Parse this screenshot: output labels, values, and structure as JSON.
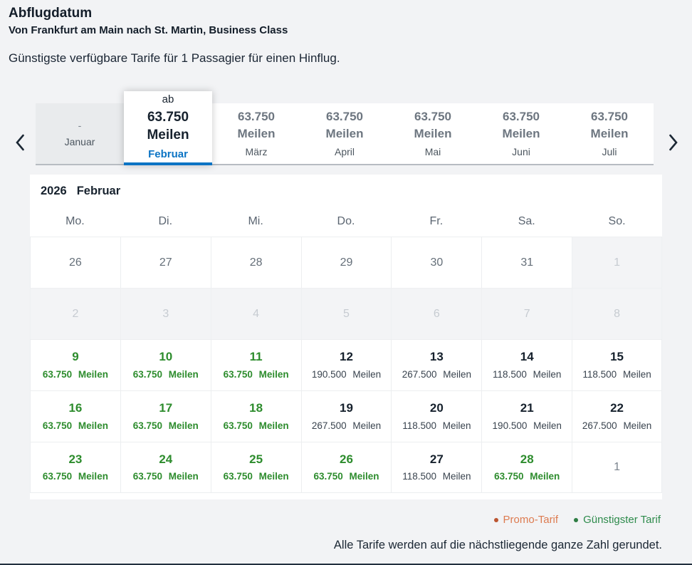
{
  "header": {
    "title": "Abflugdatum",
    "subtitle": "Von Frankfurt am Main nach St. Martin, Business Class",
    "tagline": "Günstigste verfügbare Tarife für 1 Passagier für einen Hinflug."
  },
  "carousel": {
    "tabs": [
      {
        "month": "Januar",
        "top": "-",
        "state": "disabled"
      },
      {
        "month": "Februar",
        "prefix": "ab",
        "miles": "63.750",
        "unit": "Meilen",
        "state": "selected"
      },
      {
        "month": "März",
        "miles": "63.750",
        "unit": "Meilen",
        "state": "normal"
      },
      {
        "month": "April",
        "miles": "63.750",
        "unit": "Meilen",
        "state": "normal"
      },
      {
        "month": "Mai",
        "miles": "63.750",
        "unit": "Meilen",
        "state": "normal"
      },
      {
        "month": "Juni",
        "miles": "63.750",
        "unit": "Meilen",
        "state": "normal"
      },
      {
        "month": "Juli",
        "miles": "63.750",
        "unit": "Meilen",
        "state": "normal"
      }
    ]
  },
  "calendar": {
    "year": "2026",
    "month": "Februar",
    "miles_unit": "Meilen",
    "weekdays": [
      "Mo.",
      "Di.",
      "Mi.",
      "Do.",
      "Fr.",
      "Sa.",
      "So."
    ],
    "cells": [
      {
        "day": "26",
        "type": "outside"
      },
      {
        "day": "27",
        "type": "outside"
      },
      {
        "day": "28",
        "type": "outside"
      },
      {
        "day": "29",
        "type": "outside"
      },
      {
        "day": "30",
        "type": "outside"
      },
      {
        "day": "31",
        "type": "outside"
      },
      {
        "day": "1",
        "type": "disabled"
      },
      {
        "day": "2",
        "type": "disabled"
      },
      {
        "day": "3",
        "type": "disabled"
      },
      {
        "day": "4",
        "type": "disabled"
      },
      {
        "day": "5",
        "type": "disabled"
      },
      {
        "day": "6",
        "type": "disabled"
      },
      {
        "day": "7",
        "type": "disabled"
      },
      {
        "day": "8",
        "type": "disabled"
      },
      {
        "day": "9",
        "type": "best",
        "miles": "63.750"
      },
      {
        "day": "10",
        "type": "best",
        "miles": "63.750"
      },
      {
        "day": "11",
        "type": "best",
        "miles": "63.750"
      },
      {
        "day": "12",
        "type": "fare",
        "miles": "190.500"
      },
      {
        "day": "13",
        "type": "fare",
        "miles": "267.500"
      },
      {
        "day": "14",
        "type": "fare",
        "miles": "118.500"
      },
      {
        "day": "15",
        "type": "fare",
        "miles": "118.500"
      },
      {
        "day": "16",
        "type": "best",
        "miles": "63.750"
      },
      {
        "day": "17",
        "type": "best",
        "miles": "63.750"
      },
      {
        "day": "18",
        "type": "best",
        "miles": "63.750"
      },
      {
        "day": "19",
        "type": "fare",
        "miles": "267.500"
      },
      {
        "day": "20",
        "type": "fare",
        "miles": "118.500"
      },
      {
        "day": "21",
        "type": "fare",
        "miles": "190.500"
      },
      {
        "day": "22",
        "type": "fare",
        "miles": "267.500"
      },
      {
        "day": "23",
        "type": "best",
        "miles": "63.750"
      },
      {
        "day": "24",
        "type": "best",
        "miles": "63.750"
      },
      {
        "day": "25",
        "type": "best",
        "miles": "63.750"
      },
      {
        "day": "26",
        "type": "best",
        "miles": "63.750"
      },
      {
        "day": "27",
        "type": "fare",
        "miles": "118.500"
      },
      {
        "day": "28",
        "type": "best",
        "miles": "63.750"
      },
      {
        "day": "1",
        "type": "next"
      }
    ]
  },
  "legend": {
    "promo": {
      "label": "Promo-Tarif"
    },
    "best": {
      "label": "Günstigster Tarif"
    }
  },
  "footer": {
    "note": "Alle Tarife werden auf die nächstliegende ganze Zahl gerundet."
  },
  "colors": {
    "accent_blue": "#0c74c4",
    "best_fare_green": "#2d8c2d",
    "legend_green": "#2e8b4c",
    "promo_orange": "#dd7b50",
    "page_background": "#f2f3f5",
    "panel_background": "#ffffff"
  }
}
